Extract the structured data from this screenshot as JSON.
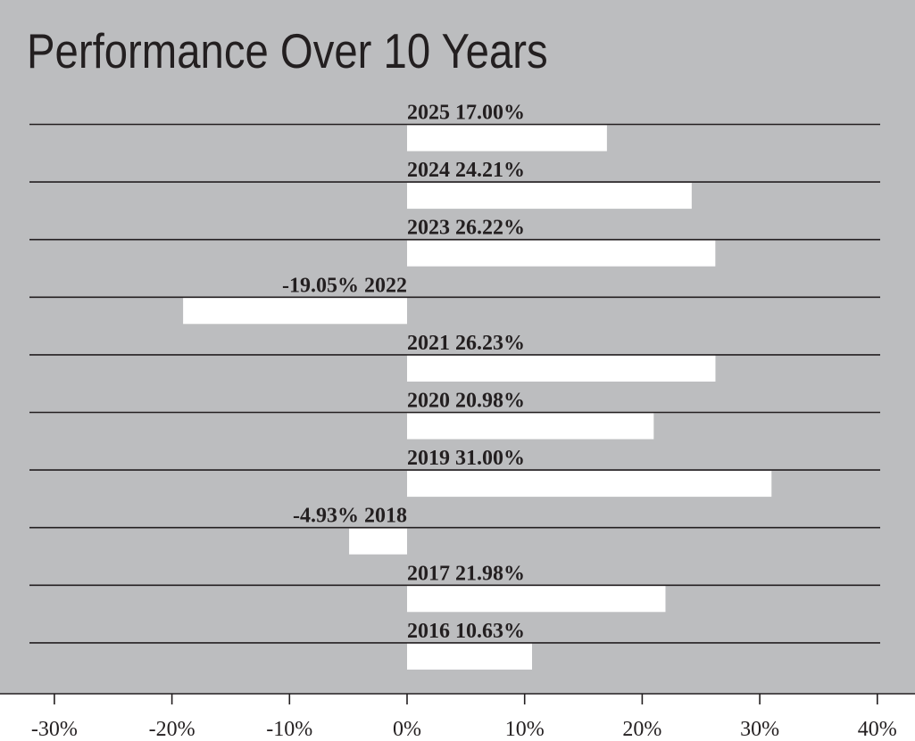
{
  "colors": {
    "panel_background": "#bcbdbf",
    "bar_fill": "#ffffff",
    "rule_line": "#231f20",
    "text": "#231f20",
    "page_background": "#ffffff"
  },
  "chart_data": {
    "type": "bar",
    "orientation": "horizontal",
    "title": "Performance Over 10 Years",
    "xlabel": "",
    "ylabel": "",
    "xlim": [
      -30,
      40
    ],
    "grid": false,
    "legend": "none",
    "x_ticks": [
      -30,
      -20,
      -10,
      0,
      10,
      20,
      30,
      40
    ],
    "x_tick_labels": [
      "-30%",
      "-20%",
      "-10%",
      "0%",
      "10%",
      "20%",
      "30%",
      "40%"
    ],
    "categories": [
      "2025",
      "2024",
      "2023",
      "2022",
      "2021",
      "2020",
      "2019",
      "2018",
      "2017",
      "2016"
    ],
    "values": [
      17.0,
      24.21,
      26.22,
      -19.05,
      26.23,
      20.98,
      31.0,
      -4.93,
      21.98,
      10.63
    ],
    "data_labels": [
      "2025 17.00%",
      "2024 24.21%",
      "2023 26.22%",
      "-19.05% 2022",
      "2021 26.23%",
      "2020 20.98%",
      "2019 31.00%",
      "-4.93% 2018",
      "2017 21.98%",
      "2016 10.63%"
    ]
  }
}
